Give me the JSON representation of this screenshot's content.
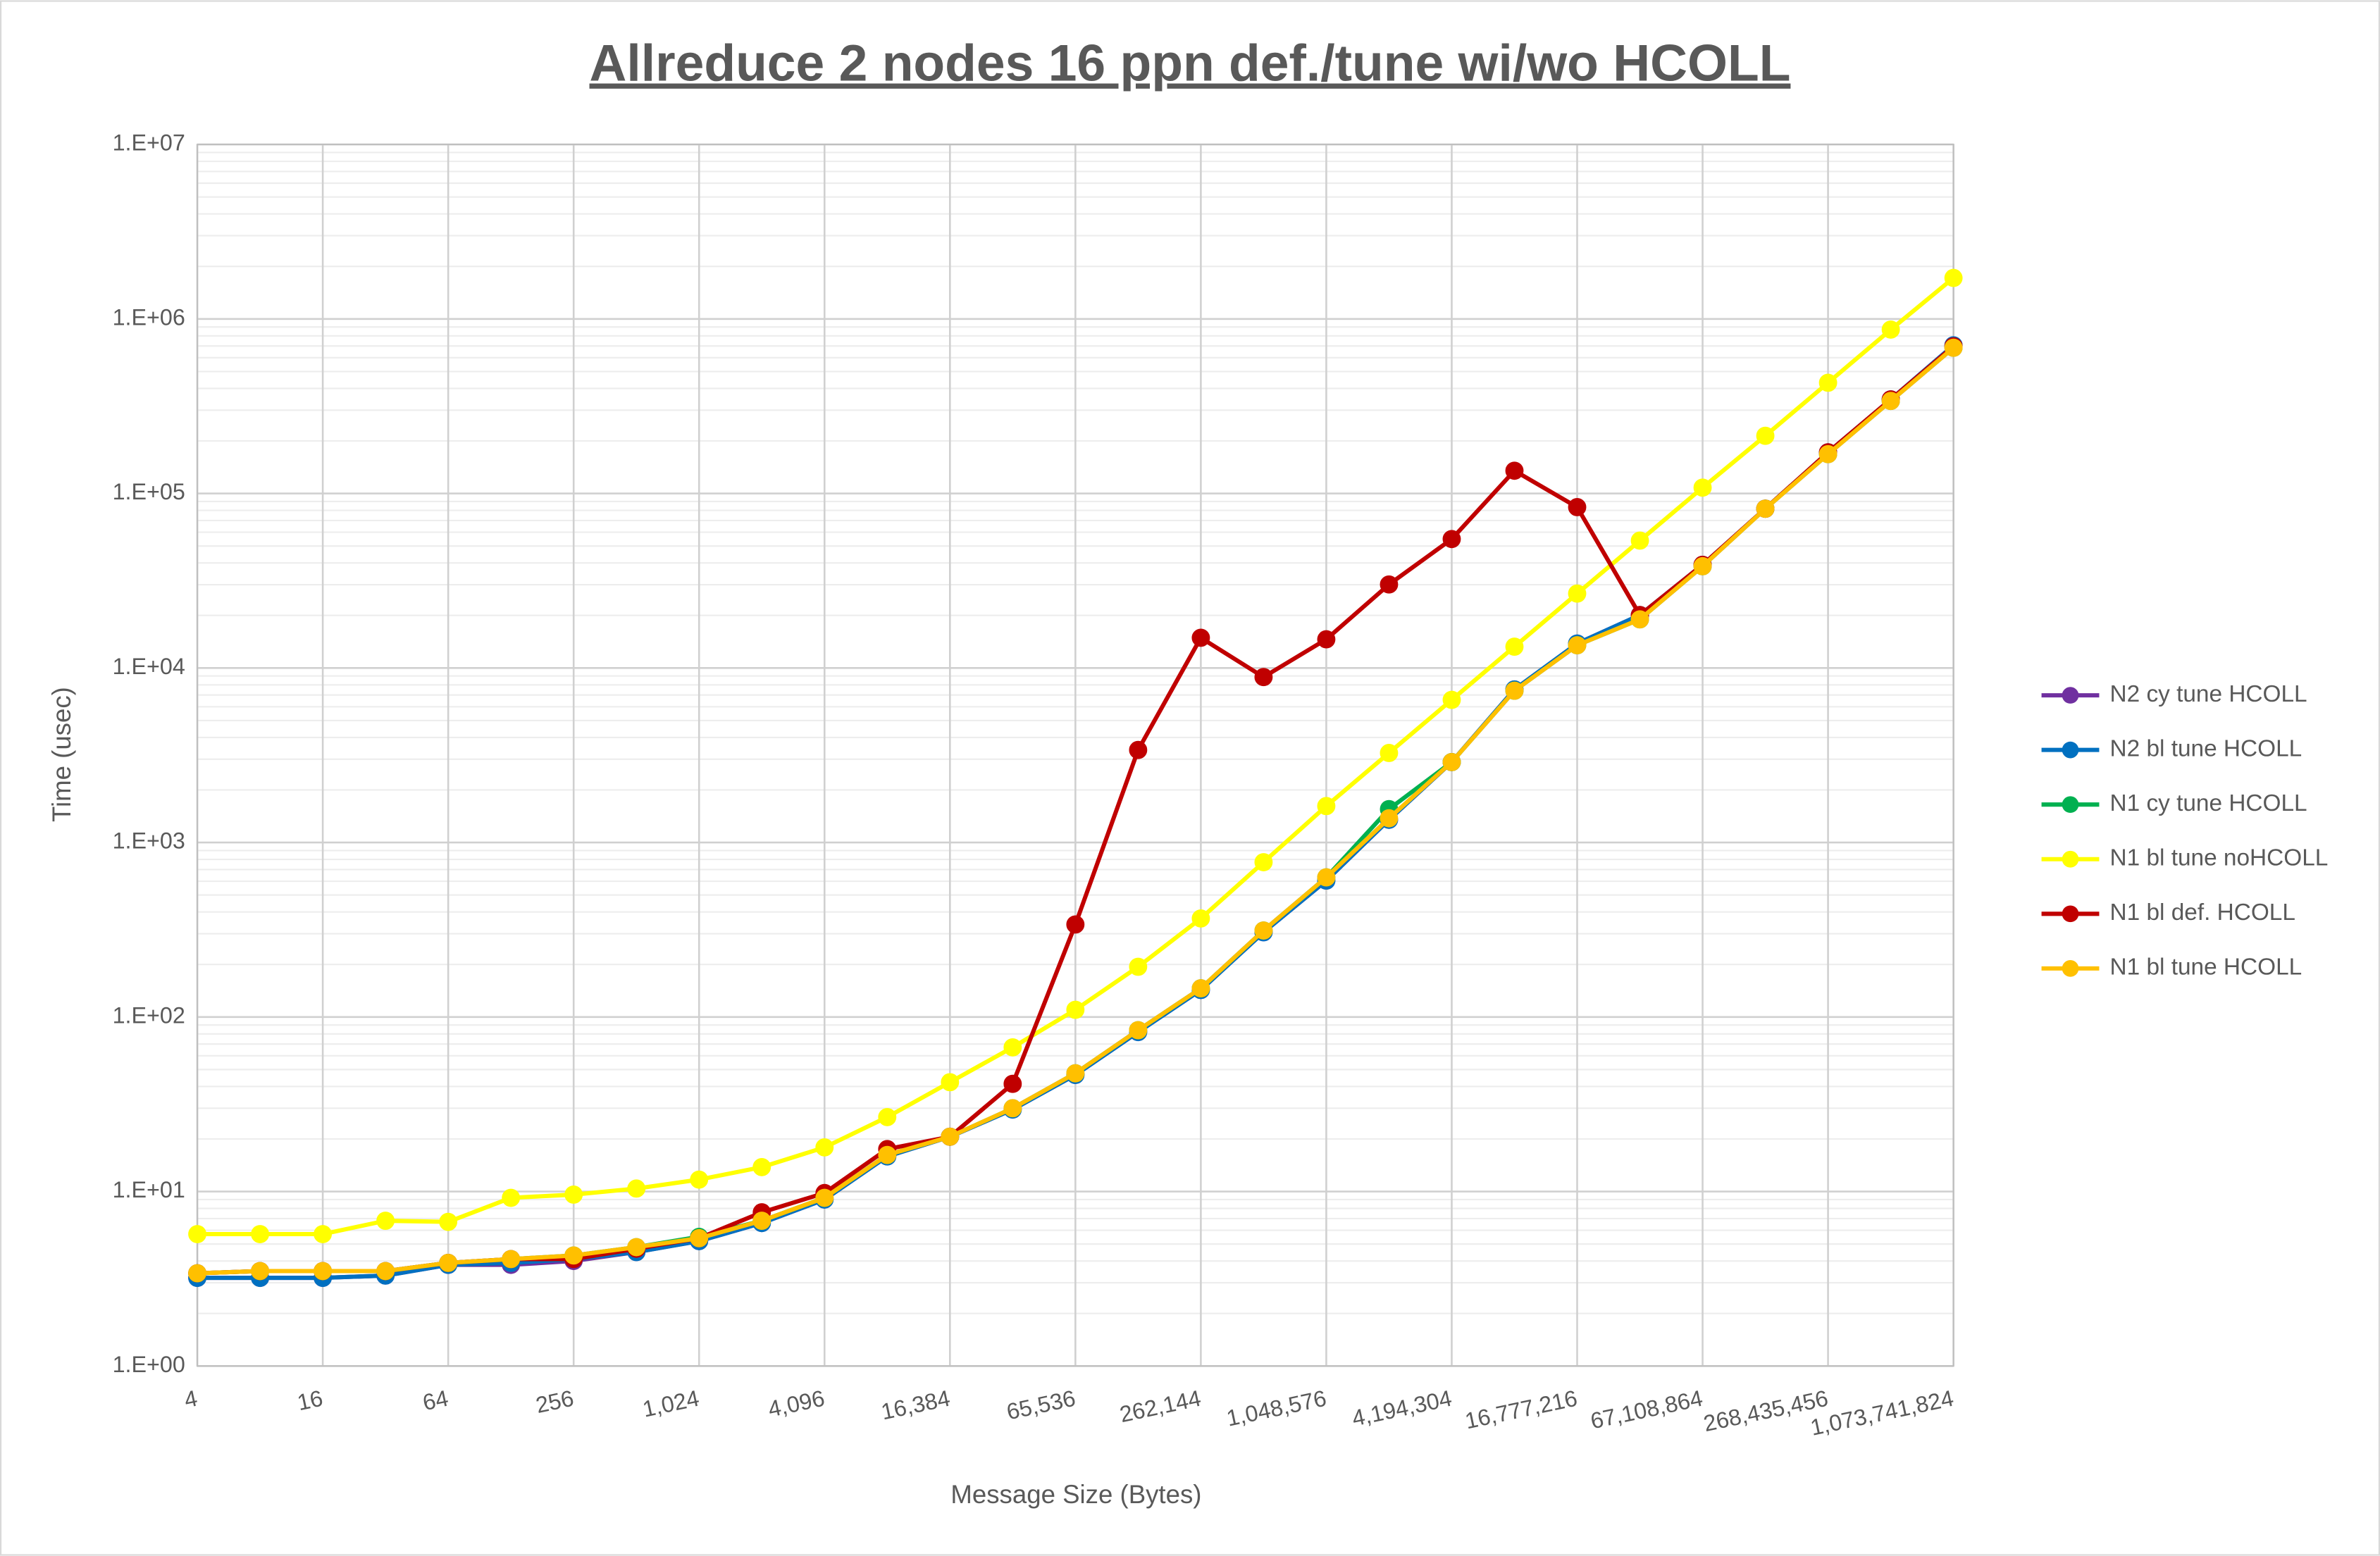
{
  "chart_data": {
    "type": "line",
    "title": "Allreduce 2 nodes 16 ppn def./tune wi/wo HCOLL",
    "x_label": "Message Size (Bytes)",
    "y_label": "Time (usec)",
    "categories": [
      "4",
      null,
      "16",
      null,
      "64",
      null,
      "256",
      null,
      "1,024",
      null,
      "4,096",
      null,
      "16,384",
      null,
      "65,536",
      null,
      "262,144",
      null,
      "1,048,576",
      null,
      "4,194,304",
      null,
      "16,777,216",
      null,
      "67,108,864",
      null,
      "268,435,456",
      null,
      "1,073,741,824"
    ],
    "ylim": [
      1,
      10000000
    ],
    "yticks": [
      {
        "value": 1,
        "label": "1.E+00"
      },
      {
        "value": 10,
        "label": "1.E+01"
      },
      {
        "value": 100,
        "label": "1.E+02"
      },
      {
        "value": 1000,
        "label": "1.E+03"
      },
      {
        "value": 10000,
        "label": "1.E+04"
      },
      {
        "value": 100000,
        "label": "1.E+05"
      },
      {
        "value": 1000000,
        "label": "1.E+06"
      },
      {
        "value": 10000000,
        "label": "1.E+07"
      }
    ],
    "y_scale": "log",
    "grid": true,
    "legend": "right",
    "series": [
      {
        "name": "N2 cy tune HCOLL",
        "color": "#7030a0",
        "values": [
          3.2,
          3.2,
          3.2,
          3.3,
          3.8,
          3.8,
          4.0,
          4.5,
          5.2,
          6.6,
          9.0,
          15.9,
          20.6,
          29.5,
          46.6,
          82,
          143,
          306,
          605,
          1350,
          2890,
          7530,
          13800,
          20100,
          39000,
          81800,
          172000,
          346000,
          706000
        ]
      },
      {
        "name": "N2 bl tune HCOLL",
        "color": "#0070c0",
        "values": [
          3.2,
          3.2,
          3.2,
          3.3,
          3.8,
          3.9,
          4.1,
          4.5,
          5.2,
          6.6,
          9.0,
          15.9,
          20.6,
          29.5,
          46.6,
          82,
          143,
          306,
          605,
          1350,
          2890,
          7530,
          13800,
          20100,
          39000,
          81800,
          172000,
          346000,
          706000
        ]
      },
      {
        "name": "N1 cy tune HCOLL",
        "color": "#00b050",
        "values": [
          3.4,
          3.5,
          3.5,
          3.5,
          3.9,
          4.1,
          4.3,
          4.8,
          5.5,
          6.8,
          9.2,
          16.2,
          20.6,
          30.0,
          47.6,
          84,
          146,
          313,
          631,
          1553,
          2890,
          7410,
          13500,
          19000,
          38300,
          81800,
          168000,
          339000,
          684000
        ]
      },
      {
        "name": "N1 bl tune noHCOLL",
        "color": "#ffff00",
        "values": [
          5.7,
          5.7,
          5.7,
          6.8,
          6.7,
          9.2,
          9.6,
          10.4,
          11.7,
          13.8,
          17.9,
          26.7,
          42.3,
          67,
          110,
          194,
          367,
          771,
          1617,
          3258,
          6567,
          13240,
          26690,
          53700,
          108000,
          214000,
          431000,
          869000,
          1718000
        ]
      },
      {
        "name": "N1 bl def. HCOLL",
        "color": "#c00000",
        "values": [
          3.4,
          3.5,
          3.5,
          3.5,
          3.9,
          4.1,
          4.1,
          4.7,
          5.4,
          7.6,
          9.8,
          17.5,
          20.6,
          41.4,
          339,
          3390,
          14900,
          8870,
          14600,
          30100,
          54800,
          135000,
          83500,
          20100,
          39000,
          81800,
          172000,
          346000,
          697000
        ]
      },
      {
        "name": "N1 bl tune HCOLL",
        "color": "#ffc000",
        "values": [
          3.4,
          3.5,
          3.5,
          3.5,
          3.9,
          4.1,
          4.3,
          4.8,
          5.4,
          6.8,
          9.2,
          16.2,
          20.6,
          30.0,
          47.6,
          84,
          146,
          313,
          631,
          1377,
          2890,
          7410,
          13500,
          19000,
          38300,
          81800,
          168000,
          339000,
          684000
        ]
      }
    ]
  }
}
